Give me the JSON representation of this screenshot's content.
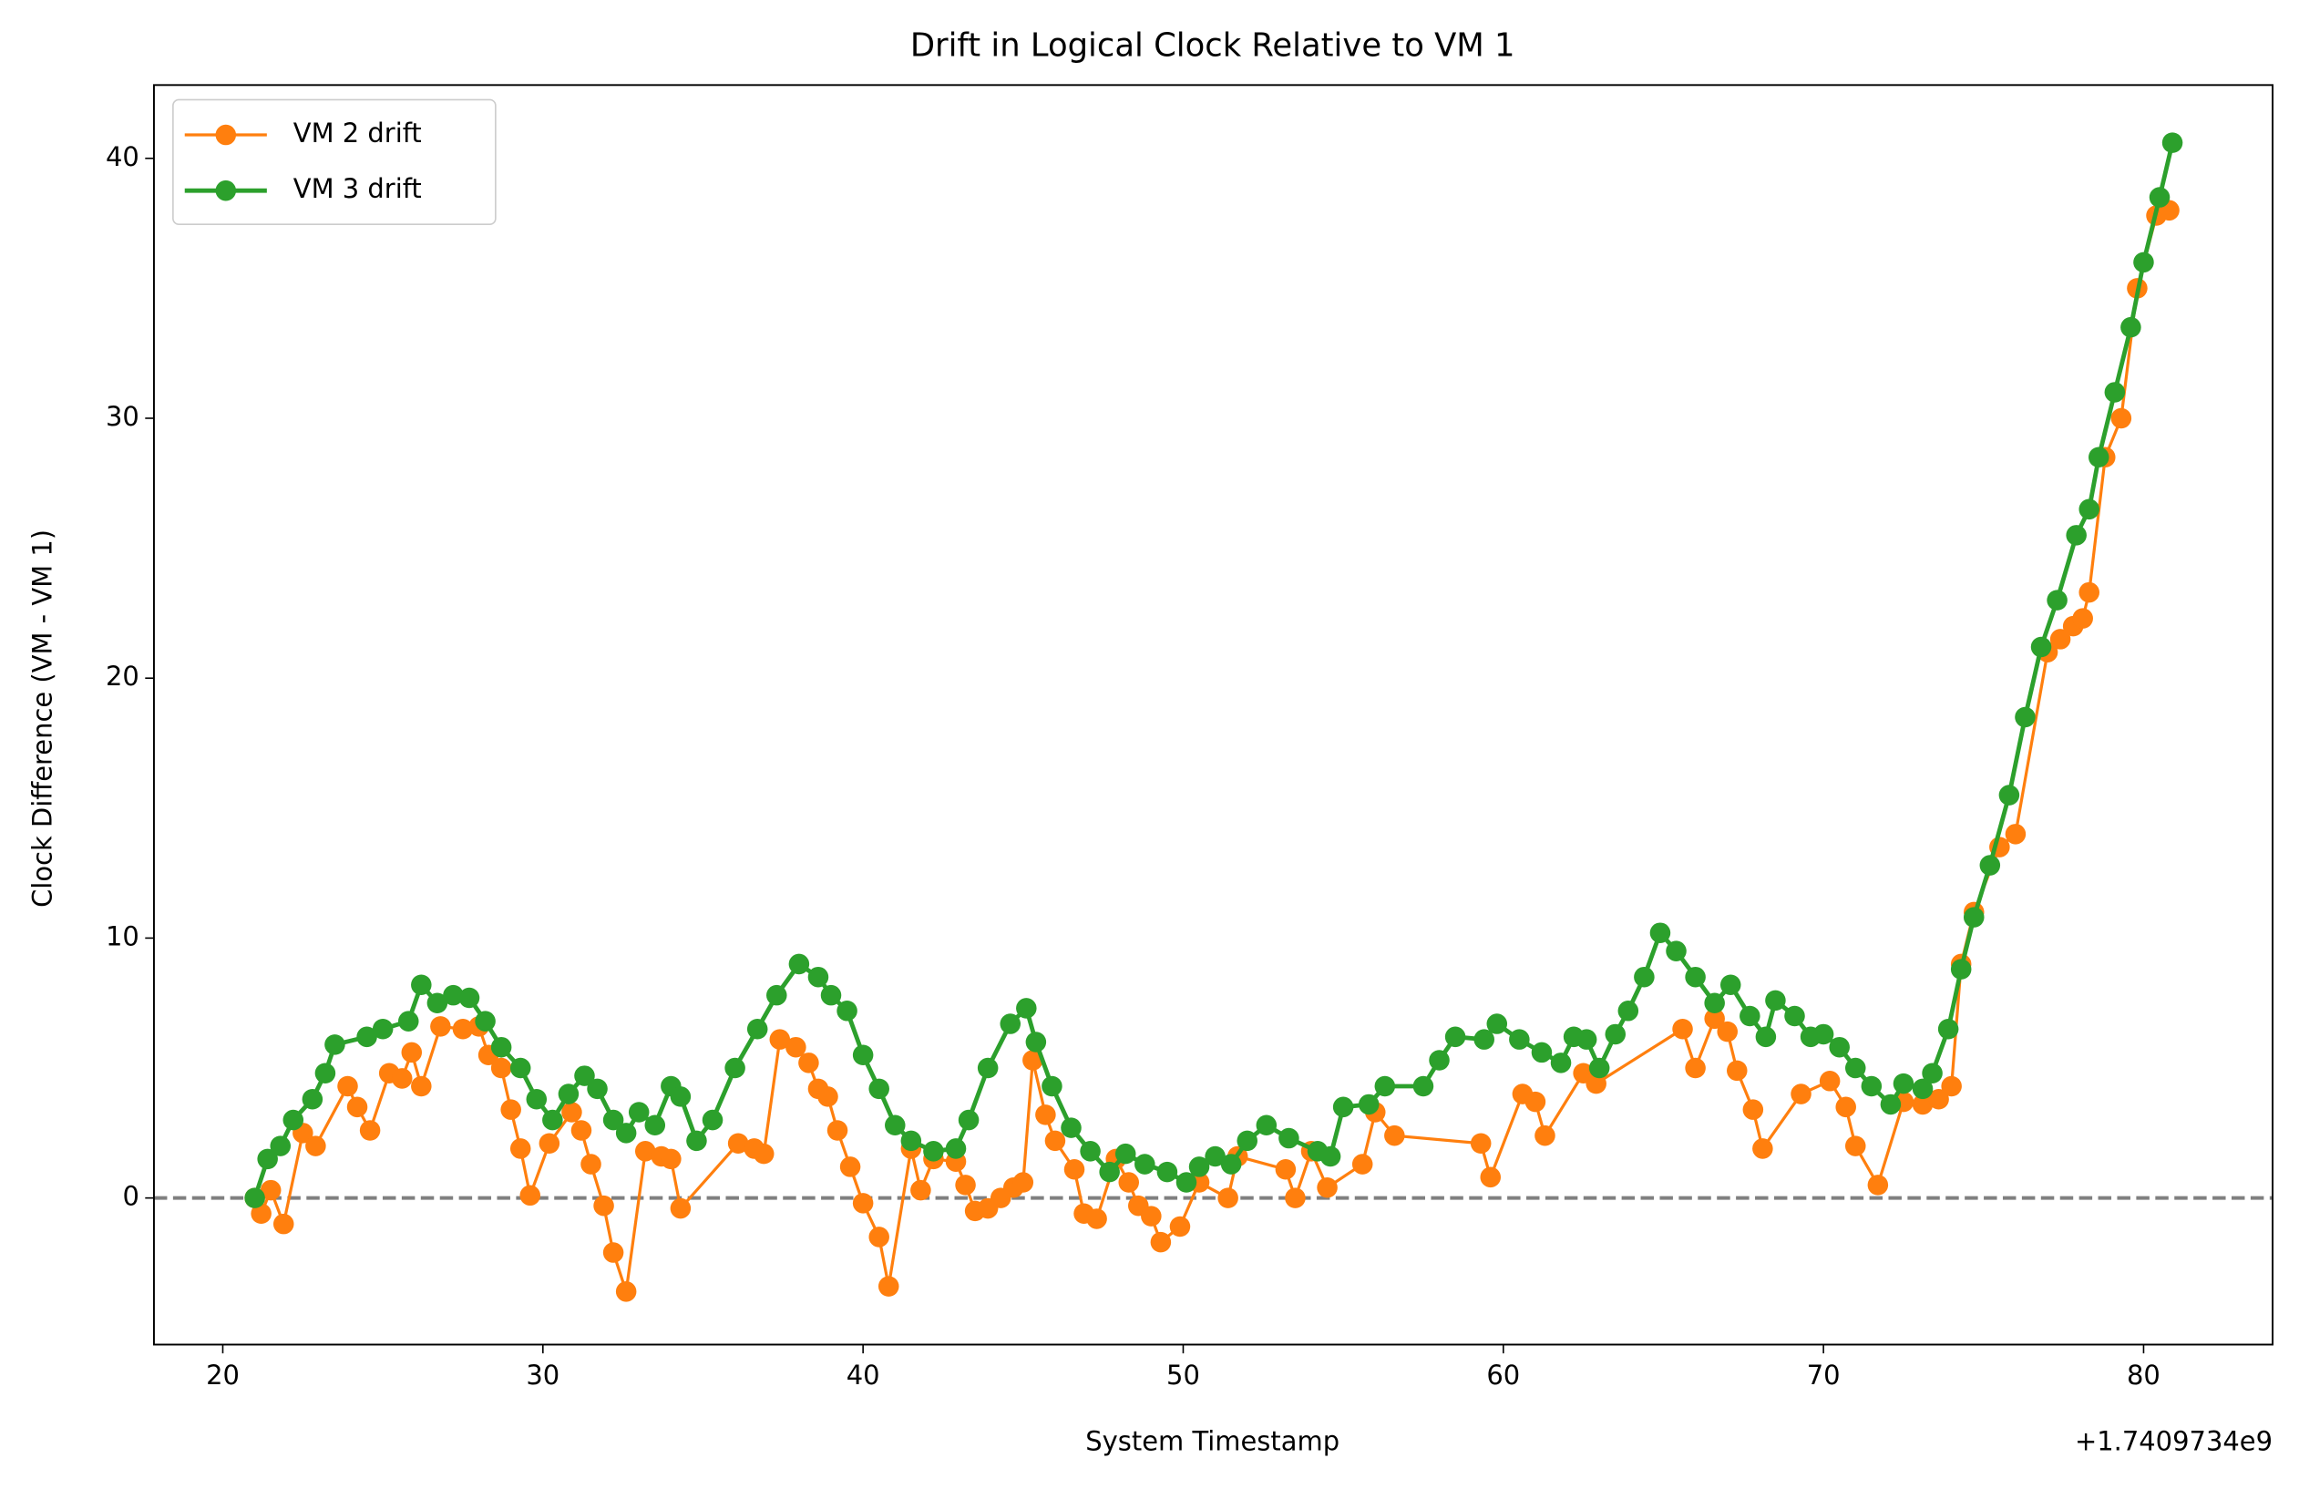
{
  "chart_data": {
    "type": "line",
    "title": "Drift in Logical Clock Relative to VM 1",
    "x_label": "System Timestamp",
    "y_label": "Clock Difference (VM - VM 1)",
    "x_offset_label": "+1.7409734e9",
    "xlim": [
      17.85,
      84.03
    ],
    "ylim": [
      -5.64,
      42.82
    ],
    "xticks": [
      20,
      30,
      40,
      50,
      60,
      70,
      80
    ],
    "yticks": [
      0,
      10,
      20,
      30,
      40
    ],
    "hline": 0,
    "hline_color": "#808080",
    "legend": "upper left",
    "series": [
      {
        "name": "VM 2 drift",
        "color": "#ff7f0e",
        "x": [
          21.0,
          21.2,
          21.5,
          21.9,
          22.5,
          22.9,
          23.9,
          24.2,
          24.6,
          25.2,
          25.6,
          25.9,
          26.2,
          26.8,
          27.5,
          28.0,
          28.3,
          28.7,
          29.0,
          29.3,
          29.6,
          30.2,
          30.9,
          31.2,
          31.5,
          31.9,
          32.2,
          32.6,
          33.2,
          33.7,
          34.0,
          34.3,
          36.1,
          36.6,
          36.9,
          37.4,
          37.9,
          38.3,
          38.6,
          38.9,
          39.2,
          39.6,
          40.0,
          40.5,
          40.8,
          41.5,
          41.8,
          42.2,
          42.9,
          43.2,
          43.5,
          43.9,
          44.3,
          44.7,
          45.0,
          45.3,
          45.7,
          46.0,
          46.6,
          46.9,
          47.3,
          47.9,
          48.3,
          48.6,
          49.0,
          49.3,
          49.9,
          50.5,
          51.4,
          51.7,
          53.2,
          53.5,
          54.0,
          54.5,
          55.6,
          56.0,
          56.6,
          59.3,
          59.6,
          60.6,
          61.0,
          61.3,
          62.5,
          62.9,
          65.6,
          66.0,
          66.6,
          67.0,
          67.3,
          67.8,
          68.1,
          69.3,
          70.2,
          70.7,
          71.0,
          71.7,
          72.5,
          73.1,
          73.6,
          74.0,
          74.3,
          74.7,
          75.5,
          76.0,
          77.0,
          77.4,
          77.8,
          78.1,
          78.3,
          78.8,
          79.3,
          79.8,
          80.4,
          80.8
        ],
        "values": [
          0,
          -0.6,
          0.3,
          -1.0,
          2.5,
          2.0,
          4.3,
          3.5,
          2.6,
          4.8,
          4.6,
          5.6,
          4.3,
          6.6,
          6.5,
          6.6,
          5.5,
          5.0,
          3.4,
          1.9,
          0.1,
          2.1,
          3.3,
          2.6,
          1.3,
          -0.3,
          -2.1,
          -3.6,
          1.8,
          1.6,
          1.5,
          -0.4,
          2.1,
          1.9,
          1.7,
          6.1,
          5.8,
          5.2,
          4.2,
          3.9,
          2.6,
          1.2,
          -0.2,
          -1.5,
          -3.4,
          1.9,
          0.3,
          1.5,
          1.4,
          0.5,
          -0.5,
          -0.4,
          0,
          0.4,
          0.6,
          5.3,
          3.2,
          2.2,
          1.1,
          -0.6,
          -0.8,
          1.5,
          0.6,
          -0.3,
          -0.7,
          -1.7,
          -1.1,
          0.6,
          0.0,
          1.6,
          1.1,
          0,
          1.8,
          0.4,
          1.3,
          3.3,
          2.4,
          2.1,
          0.8,
          4.0,
          3.7,
          2.4,
          4.8,
          4.4,
          6.5,
          5.0,
          6.9,
          6.4,
          4.9,
          3.4,
          1.9,
          4.0,
          4.5,
          3.5,
          2.0,
          0.5,
          3.7,
          3.6,
          3.8,
          4.3,
          9.0,
          11.0,
          13.5,
          14.0,
          21.0,
          21.5,
          22.0,
          22.3,
          23.3,
          28.5,
          30.0,
          35.0,
          37.8,
          38.0
        ]
      },
      {
        "name": "VM 3 drift",
        "color": "#2ca02c",
        "x": [
          21.0,
          21.4,
          21.8,
          22.2,
          22.8,
          23.2,
          23.5,
          24.5,
          25.0,
          25.8,
          26.2,
          26.7,
          27.2,
          27.7,
          28.2,
          28.7,
          29.3,
          29.8,
          30.3,
          30.8,
          31.3,
          31.7,
          32.2,
          32.6,
          33.0,
          33.5,
          34.0,
          34.3,
          34.8,
          35.3,
          36.0,
          36.7,
          37.3,
          38.0,
          38.6,
          39.0,
          39.5,
          40.0,
          40.5,
          41.0,
          41.5,
          42.2,
          42.9,
          43.3,
          43.9,
          44.6,
          45.1,
          45.4,
          45.9,
          46.5,
          47.1,
          47.7,
          48.2,
          48.8,
          49.5,
          50.1,
          50.5,
          51.0,
          51.5,
          52.0,
          52.6,
          53.3,
          54.2,
          54.6,
          55.0,
          55.8,
          56.3,
          57.5,
          58.0,
          58.5,
          59.4,
          59.8,
          60.5,
          61.2,
          61.8,
          62.2,
          62.6,
          63.0,
          63.5,
          63.9,
          64.4,
          64.9,
          65.4,
          66.0,
          66.6,
          67.1,
          67.7,
          68.2,
          68.5,
          69.1,
          69.6,
          70.0,
          70.5,
          71.0,
          71.5,
          72.1,
          72.5,
          73.1,
          73.4,
          73.9,
          74.3,
          74.7,
          75.2,
          75.8,
          76.3,
          76.8,
          77.3,
          77.9,
          78.3,
          78.6,
          79.1,
          79.6,
          80.0,
          80.5,
          80.9
        ],
        "values": [
          0,
          1.5,
          2.0,
          3.0,
          3.8,
          4.8,
          5.9,
          6.2,
          6.5,
          6.8,
          8.2,
          7.5,
          7.8,
          7.7,
          6.8,
          5.8,
          5.0,
          3.8,
          3.0,
          4.0,
          4.7,
          4.2,
          3.0,
          2.5,
          3.3,
          2.8,
          4.3,
          3.9,
          2.2,
          3.0,
          5.0,
          6.5,
          7.8,
          9.0,
          8.5,
          7.8,
          7.2,
          5.5,
          4.2,
          2.8,
          2.2,
          1.8,
          1.9,
          3.0,
          5.0,
          6.7,
          7.3,
          6.0,
          4.3,
          2.7,
          1.8,
          1.0,
          1.7,
          1.3,
          1.0,
          0.6,
          1.2,
          1.6,
          1.3,
          2.2,
          2.8,
          2.3,
          1.8,
          1.6,
          3.5,
          3.6,
          4.3,
          4.3,
          5.3,
          6.2,
          6.1,
          6.7,
          6.1,
          5.6,
          5.2,
          6.2,
          6.1,
          5.0,
          6.3,
          7.2,
          8.5,
          10.2,
          9.5,
          8.5,
          7.5,
          8.2,
          7.0,
          6.2,
          7.6,
          7.0,
          6.2,
          6.3,
          5.8,
          5.0,
          4.3,
          3.6,
          4.4,
          4.2,
          4.8,
          6.5,
          8.8,
          10.8,
          12.8,
          15.5,
          18.5,
          21.2,
          23.0,
          25.5,
          26.5,
          28.5,
          31.0,
          33.5,
          36.0,
          38.5,
          40.6
        ]
      }
    ]
  }
}
